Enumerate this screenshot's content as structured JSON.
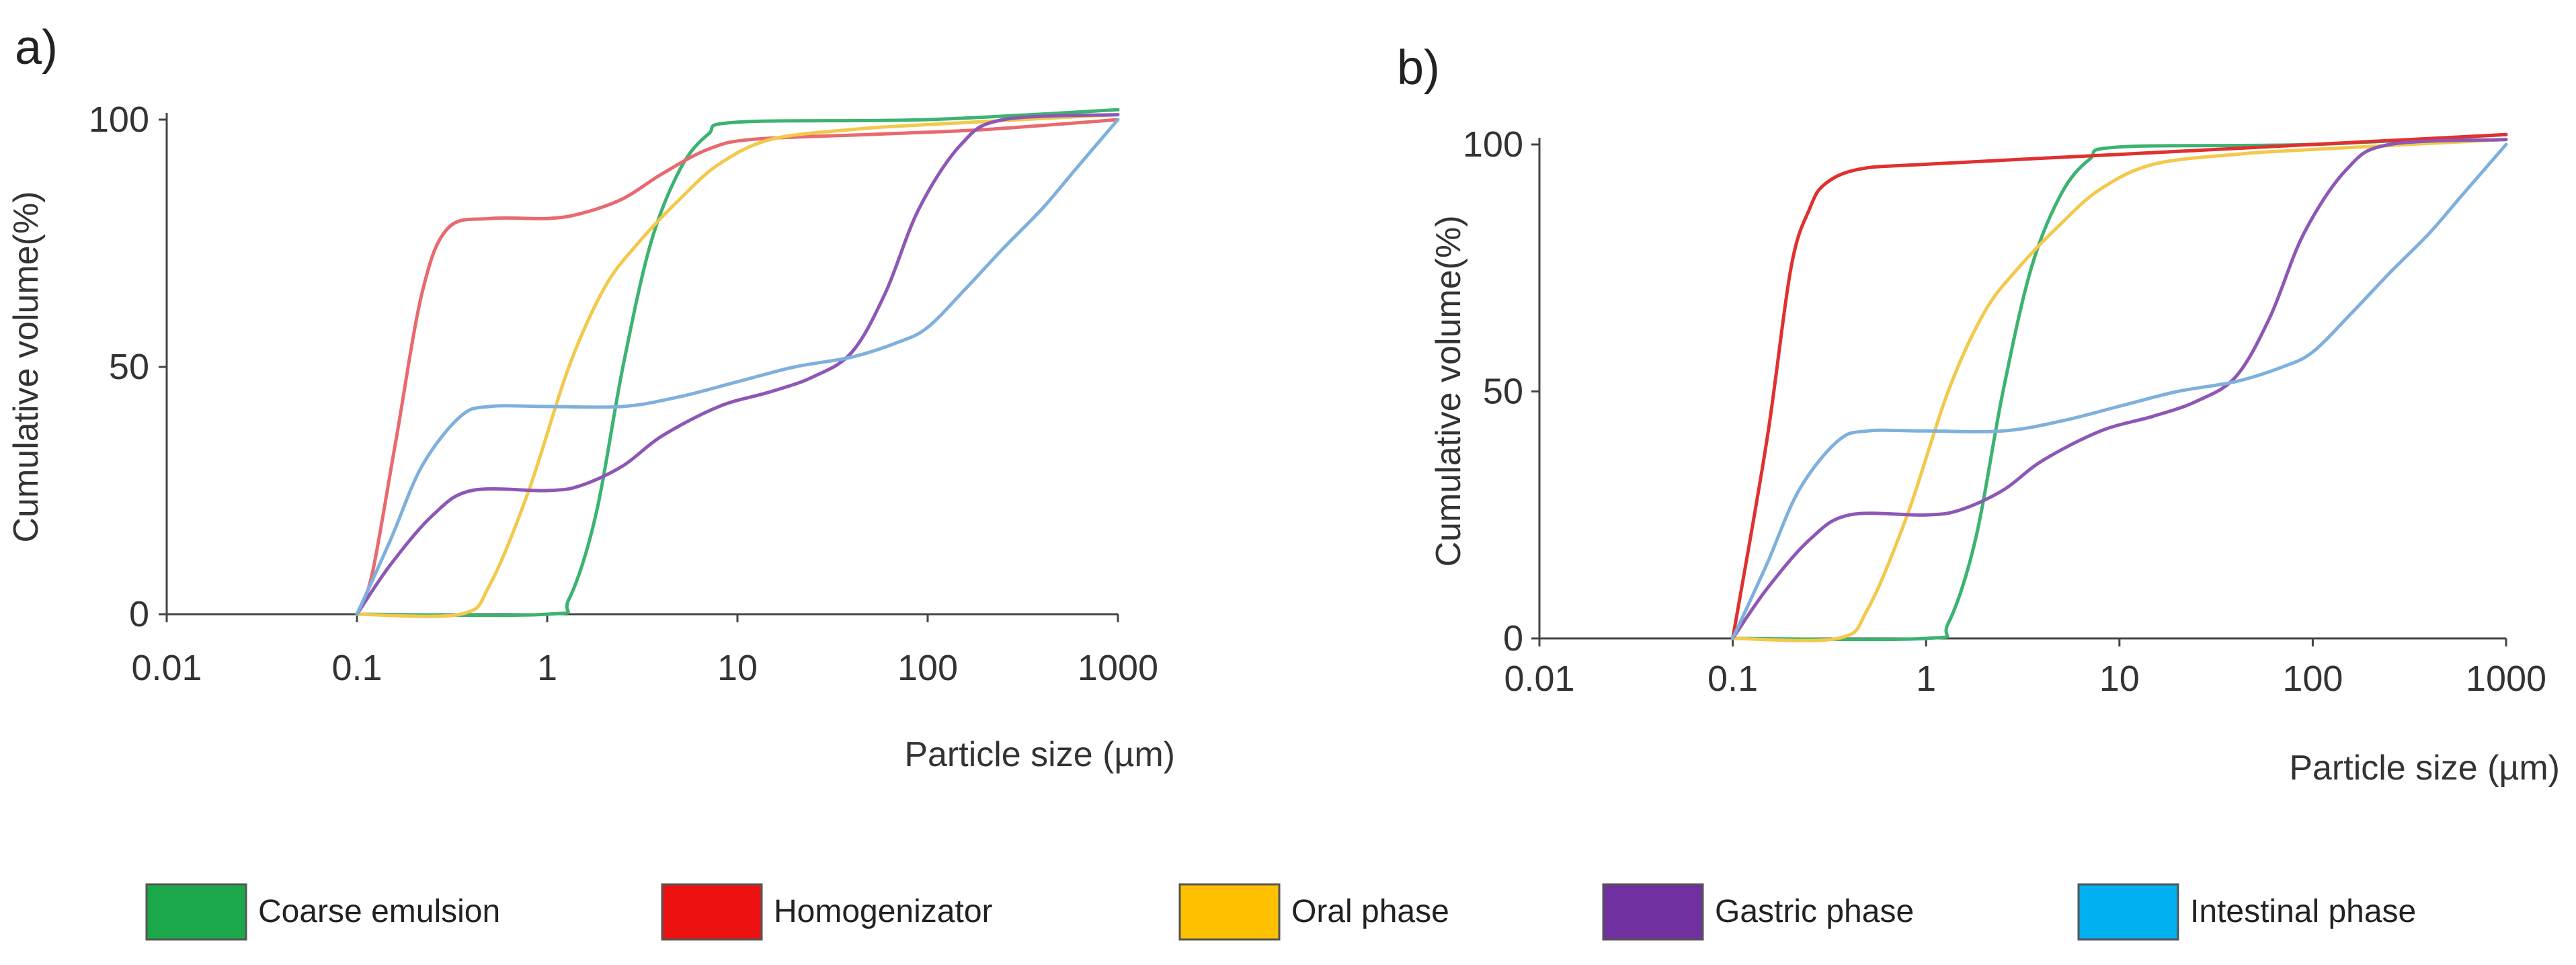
{
  "chart_data": [
    {
      "panel": "a)",
      "type": "line",
      "xscale": "log",
      "xlim": [
        0.01,
        1000
      ],
      "ylim": [
        0,
        100
      ],
      "xticks": [
        0.01,
        0.1,
        1,
        10,
        100,
        1000
      ],
      "xtick_labels": [
        "0.01",
        "0.1",
        "1",
        "10",
        "100",
        "1000"
      ],
      "yticks": [
        0,
        50,
        100
      ],
      "ytick_labels": [
        "0",
        "50",
        "100"
      ],
      "xlabel": "Particle size (µm)",
      "ylabel": "Cumulative volume(%)",
      "grid": false,
      "series": [
        {
          "name": "Coarse emulsion",
          "color": "#3cb371",
          "points": [
            [
              0.1,
              0
            ],
            [
              1,
              0
            ],
            [
              1.3,
              3
            ],
            [
              1.8,
              20
            ],
            [
              2.5,
              50
            ],
            [
              3.5,
              75
            ],
            [
              5,
              90
            ],
            [
              7,
              97
            ],
            [
              10,
              99.5
            ],
            [
              100,
              100
            ],
            [
              1000,
              102
            ]
          ]
        },
        {
          "name": "Homogenizator",
          "color": "#e8696f",
          "points": [
            [
              0.1,
              0
            ],
            [
              0.12,
              8
            ],
            [
              0.16,
              35
            ],
            [
              0.22,
              65
            ],
            [
              0.3,
              78
            ],
            [
              0.5,
              80
            ],
            [
              1,
              80
            ],
            [
              1.5,
              81
            ],
            [
              2.5,
              84
            ],
            [
              4,
              89
            ],
            [
              7,
              94
            ],
            [
              12,
              96
            ],
            [
              50,
              97
            ],
            [
              200,
              98
            ],
            [
              1000,
              100
            ]
          ]
        },
        {
          "name": "Oral phase",
          "color": "#f2c94c",
          "points": [
            [
              0.1,
              0
            ],
            [
              0.35,
              0
            ],
            [
              0.5,
              6
            ],
            [
              0.8,
              25
            ],
            [
              1.3,
              50
            ],
            [
              2,
              66
            ],
            [
              3,
              75
            ],
            [
              5,
              84
            ],
            [
              8,
              91
            ],
            [
              15,
              96
            ],
            [
              40,
              98
            ],
            [
              100,
              99
            ],
            [
              1000,
              101
            ]
          ]
        },
        {
          "name": "Gastric phase",
          "color": "#8e57b5",
          "points": [
            [
              0.1,
              0
            ],
            [
              0.15,
              10
            ],
            [
              0.25,
              20
            ],
            [
              0.4,
              25
            ],
            [
              1,
              25
            ],
            [
              1.5,
              26
            ],
            [
              2.5,
              30
            ],
            [
              4,
              36
            ],
            [
              8,
              42
            ],
            [
              15,
              45
            ],
            [
              25,
              48
            ],
            [
              40,
              53
            ],
            [
              60,
              65
            ],
            [
              90,
              82
            ],
            [
              150,
              95
            ],
            [
              250,
              100
            ],
            [
              1000,
              101
            ]
          ]
        },
        {
          "name": "Intestinal phase",
          "color": "#7fb0dc",
          "points": [
            [
              0.1,
              0
            ],
            [
              0.15,
              15
            ],
            [
              0.22,
              30
            ],
            [
              0.35,
              40
            ],
            [
              0.5,
              42
            ],
            [
              1,
              42
            ],
            [
              2.5,
              42
            ],
            [
              5,
              44
            ],
            [
              10,
              47
            ],
            [
              20,
              50
            ],
            [
              40,
              52
            ],
            [
              70,
              55
            ],
            [
              100,
              58
            ],
            [
              160,
              66
            ],
            [
              250,
              74
            ],
            [
              400,
              82
            ],
            [
              600,
              90
            ],
            [
              1000,
              100
            ]
          ]
        }
      ]
    },
    {
      "panel": "b)",
      "type": "line",
      "xscale": "log",
      "xlim": [
        0.01,
        1000
      ],
      "ylim": [
        0,
        100
      ],
      "xticks": [
        0.01,
        0.1,
        1,
        10,
        100,
        1000
      ],
      "xtick_labels": [
        "0.01",
        "0.1",
        "1",
        "10",
        "100",
        "1000"
      ],
      "yticks": [
        0,
        50,
        100
      ],
      "ytick_labels": [
        "0",
        "50",
        "100"
      ],
      "xlabel": "Particle size (µm)",
      "ylabel": "Cumulative volume(%)",
      "grid": false,
      "series": [
        {
          "name": "Coarse emulsion",
          "color": "#3cb371",
          "points": [
            [
              0.1,
              0
            ],
            [
              1,
              0
            ],
            [
              1.3,
              3
            ],
            [
              1.8,
              20
            ],
            [
              2.5,
              50
            ],
            [
              3.5,
              75
            ],
            [
              5,
              90
            ],
            [
              7,
              97
            ],
            [
              10,
              99.5
            ],
            [
              100,
              100
            ],
            [
              1000,
              102
            ]
          ]
        },
        {
          "name": "Homogenizator",
          "color": "#e03030",
          "points": [
            [
              0.1,
              0
            ],
            [
              0.15,
              40
            ],
            [
              0.2,
              75
            ],
            [
              0.25,
              87
            ],
            [
              0.3,
              92
            ],
            [
              0.45,
              95
            ],
            [
              1,
              96
            ],
            [
              10,
              98
            ],
            [
              100,
              100
            ],
            [
              1000,
              102
            ]
          ]
        },
        {
          "name": "Oral phase",
          "color": "#f2c94c",
          "points": [
            [
              0.1,
              0
            ],
            [
              0.35,
              0
            ],
            [
              0.5,
              6
            ],
            [
              0.8,
              25
            ],
            [
              1.3,
              50
            ],
            [
              2,
              66
            ],
            [
              3,
              75
            ],
            [
              5,
              84
            ],
            [
              8,
              91
            ],
            [
              15,
              96
            ],
            [
              40,
              98
            ],
            [
              100,
              99
            ],
            [
              1000,
              101
            ]
          ]
        },
        {
          "name": "Gastric phase",
          "color": "#8e57b5",
          "points": [
            [
              0.1,
              0
            ],
            [
              0.15,
              10
            ],
            [
              0.25,
              20
            ],
            [
              0.4,
              25
            ],
            [
              1,
              25
            ],
            [
              1.5,
              26
            ],
            [
              2.5,
              30
            ],
            [
              4,
              36
            ],
            [
              8,
              42
            ],
            [
              15,
              45
            ],
            [
              25,
              48
            ],
            [
              40,
              53
            ],
            [
              60,
              65
            ],
            [
              90,
              82
            ],
            [
              150,
              95
            ],
            [
              250,
              100
            ],
            [
              1000,
              101
            ]
          ]
        },
        {
          "name": "Intestinal phase",
          "color": "#7fb0dc",
          "points": [
            [
              0.1,
              0
            ],
            [
              0.15,
              15
            ],
            [
              0.22,
              30
            ],
            [
              0.35,
              40
            ],
            [
              0.5,
              42
            ],
            [
              1,
              42
            ],
            [
              2.5,
              42
            ],
            [
              5,
              44
            ],
            [
              10,
              47
            ],
            [
              20,
              50
            ],
            [
              40,
              52
            ],
            [
              70,
              55
            ],
            [
              100,
              58
            ],
            [
              160,
              66
            ],
            [
              250,
              74
            ],
            [
              400,
              82
            ],
            [
              600,
              90
            ],
            [
              1000,
              100
            ]
          ]
        }
      ]
    }
  ],
  "legend": {
    "placement": "bottom",
    "items": [
      {
        "label": "Coarse emulsion",
        "color": "#1aa84a"
      },
      {
        "label": "Homogenizator",
        "color": "#ee1111"
      },
      {
        "label": "Oral phase",
        "color": "#ffc000"
      },
      {
        "label": "Gastric phase",
        "color": "#7030a0"
      },
      {
        "label": "Intestinal phase",
        "color": "#00b0f0"
      }
    ]
  }
}
